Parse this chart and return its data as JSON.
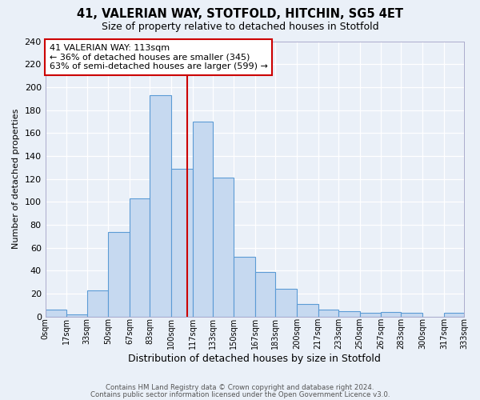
{
  "title": "41, VALERIAN WAY, STOTFOLD, HITCHIN, SG5 4ET",
  "subtitle": "Size of property relative to detached houses in Stotfold",
  "xlabel": "Distribution of detached houses by size in Stotfold",
  "ylabel": "Number of detached properties",
  "bin_edges": [
    0,
    17,
    33,
    50,
    67,
    83,
    100,
    117,
    133,
    150,
    167,
    183,
    200,
    217,
    233,
    250,
    267,
    283,
    300,
    317,
    333
  ],
  "bin_labels": [
    "0sqm",
    "17sqm",
    "33sqm",
    "50sqm",
    "67sqm",
    "83sqm",
    "100sqm",
    "117sqm",
    "133sqm",
    "150sqm",
    "167sqm",
    "183sqm",
    "200sqm",
    "217sqm",
    "233sqm",
    "250sqm",
    "267sqm",
    "283sqm",
    "300sqm",
    "317sqm",
    "333sqm"
  ],
  "counts": [
    6,
    2,
    23,
    74,
    103,
    193,
    129,
    170,
    121,
    52,
    39,
    24,
    11,
    6,
    5,
    3,
    4,
    3,
    0,
    3
  ],
  "bar_color": "#c6d9f0",
  "bar_edge_color": "#5b9bd5",
  "vline_x": 113,
  "vline_color": "#cc0000",
  "annotation_title": "41 VALERIAN WAY: 113sqm",
  "annotation_line1": "← 36% of detached houses are smaller (345)",
  "annotation_line2": "63% of semi-detached houses are larger (599) →",
  "annotation_box_facecolor": "#ffffff",
  "annotation_box_edgecolor": "#cc0000",
  "ylim_max": 240,
  "yticks": [
    0,
    20,
    40,
    60,
    80,
    100,
    120,
    140,
    160,
    180,
    200,
    220,
    240
  ],
  "fig_facecolor": "#eaf0f8",
  "grid_color": "#d8e4f0",
  "footer1": "Contains HM Land Registry data © Crown copyright and database right 2024.",
  "footer2": "Contains public sector information licensed under the Open Government Licence v3.0."
}
